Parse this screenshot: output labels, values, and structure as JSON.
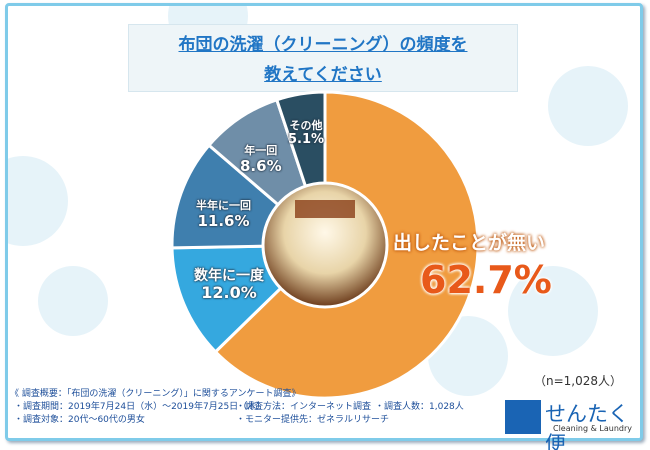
{
  "title": {
    "line1": "布団の洗濯（クリーニング）の頻度を",
    "line2": "教えてください"
  },
  "chart_data": {
    "type": "pie",
    "donut": true,
    "start": "top",
    "direction": "clockwise",
    "categories": [
      "出したことが無い",
      "数年に一度",
      "半年に一回",
      "年一回",
      "その他"
    ],
    "values": [
      62.7,
      12.0,
      11.6,
      8.6,
      5.1
    ],
    "labels": [
      "62.7%",
      "12.0%",
      "11.6%",
      "8.6%",
      "5.1%"
    ],
    "colors": [
      "#f09c3f",
      "#35a8df",
      "#3f7fae",
      "#6f8ea8",
      "#2a4e62"
    ]
  },
  "sample": "（n=1,028人）",
  "notes": {
    "heading": "《 調査概要：「布団の洗濯（クリーニング）」に関するアンケート調査》",
    "period": "・調査期間：2019年7月24日（水）～2019年7月25日（木）",
    "method": "・調査方法：インターネット調査",
    "count": "・調査人数：1,028人",
    "target": "・調査対象：20代～60代の男女",
    "provider": "・モニター提供先：ゼネラルリサーチ"
  },
  "logo": {
    "name": "せんたく便",
    "sub": "Cleaning & Laundry"
  }
}
